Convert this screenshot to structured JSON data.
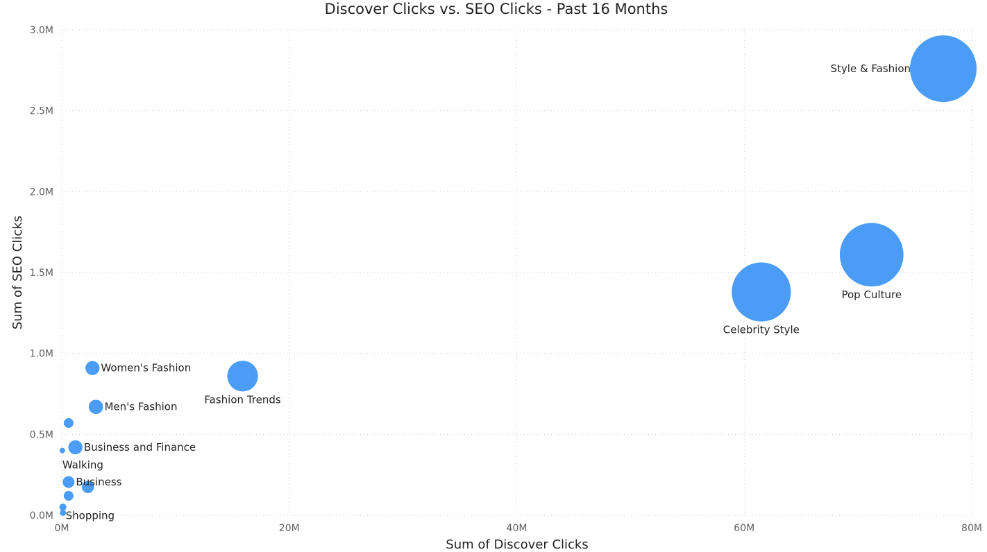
{
  "chart_data": {
    "type": "scatter",
    "title": "Discover Clicks vs. SEO Clicks - Past 16 Months",
    "xlabel": "Sum of Discover Clicks",
    "ylabel": "Sum of SEO Clicks",
    "xlim": [
      0,
      80000000
    ],
    "ylim": [
      0,
      3000000
    ],
    "x_ticks": [
      {
        "value": 0,
        "label": "0M"
      },
      {
        "value": 20000000,
        "label": "20M"
      },
      {
        "value": 40000000,
        "label": "40M"
      },
      {
        "value": 60000000,
        "label": "60M"
      },
      {
        "value": 80000000,
        "label": "80M"
      }
    ],
    "y_ticks": [
      {
        "value": 0,
        "label": "0.0M"
      },
      {
        "value": 500000,
        "label": "0.5M"
      },
      {
        "value": 1000000,
        "label": "1.0M"
      },
      {
        "value": 1500000,
        "label": "1.5M"
      },
      {
        "value": 2000000,
        "label": "2.0M"
      },
      {
        "value": 2500000,
        "label": "2.5M"
      },
      {
        "value": 3000000,
        "label": "3.0M"
      }
    ],
    "grid": true,
    "bubble_color": "#4a9cf5",
    "points": [
      {
        "label": "Style & Fashion",
        "x": 77500000,
        "y": 2760000,
        "size": 80000000,
        "label_pos": "left"
      },
      {
        "label": "Pop Culture",
        "x": 71200000,
        "y": 1610000,
        "size": 73000000,
        "label_pos": "below"
      },
      {
        "label": "Celebrity Style",
        "x": 61500000,
        "y": 1380000,
        "size": 63000000,
        "label_pos": "below"
      },
      {
        "label": "Fashion Trends",
        "x": 15900000,
        "y": 860000,
        "size": 17000000,
        "label_pos": "below"
      },
      {
        "label": "Women's Fashion",
        "x": 2700000,
        "y": 910000,
        "size": 3600000,
        "label_pos": "right"
      },
      {
        "label": "Men's Fashion",
        "x": 3000000,
        "y": 670000,
        "size": 3700000,
        "label_pos": "right"
      },
      {
        "label": "",
        "x": 600000,
        "y": 570000,
        "size": 1700000,
        "label_pos": "none"
      },
      {
        "label": "Business and Finance",
        "x": 1200000,
        "y": 420000,
        "size": 3600000,
        "label_pos": "right"
      },
      {
        "label": "Walking",
        "x": 50000,
        "y": 400000,
        "size": 500000,
        "label_pos": "below-right"
      },
      {
        "label": "Business",
        "x": 600000,
        "y": 205000,
        "size": 2500000,
        "label_pos": "right"
      },
      {
        "label": "",
        "x": 2300000,
        "y": 175000,
        "size": 2700000,
        "label_pos": "none"
      },
      {
        "label": "",
        "x": 600000,
        "y": 120000,
        "size": 1700000,
        "label_pos": "none"
      },
      {
        "label": "Shopping",
        "x": 100000,
        "y": 50000,
        "size": 900000,
        "label_pos": "right-below"
      },
      {
        "label": "",
        "x": 100000,
        "y": 15000,
        "size": 700000,
        "label_pos": "none"
      }
    ]
  }
}
